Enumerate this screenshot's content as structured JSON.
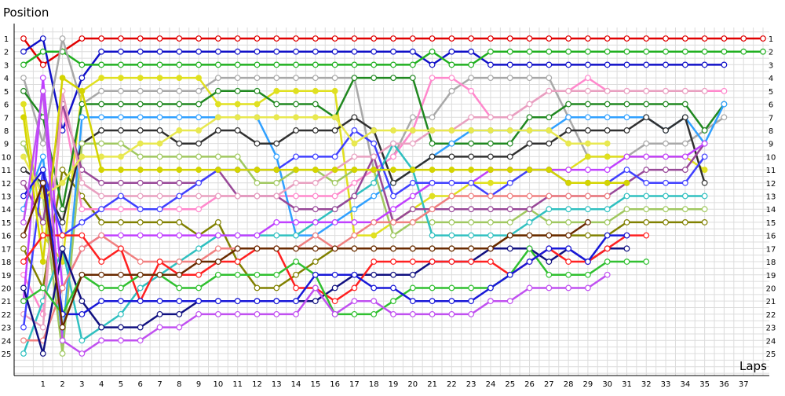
{
  "chart_data": {
    "type": "line",
    "title": "",
    "xlabel": "Laps",
    "ylabel": "Position",
    "xlim": [
      0,
      38
    ],
    "ylim": [
      1,
      25
    ],
    "y_reversed": true,
    "grid": true,
    "x_ticks": [
      1,
      2,
      3,
      4,
      5,
      6,
      7,
      8,
      9,
      10,
      11,
      12,
      13,
      14,
      15,
      16,
      17,
      18,
      19,
      20,
      21,
      22,
      23,
      24,
      25,
      26,
      27,
      28,
      29,
      30,
      31,
      32,
      33,
      34,
      35,
      36,
      37
    ],
    "y_ticks": [
      1,
      2,
      3,
      4,
      5,
      6,
      7,
      8,
      9,
      10,
      11,
      12,
      13,
      14,
      15,
      16,
      17,
      18,
      19,
      20,
      21,
      22,
      23,
      24,
      25
    ],
    "series": [
      {
        "color": "#e00000",
        "x0": 0,
        "values": [
          1,
          3,
          2,
          1,
          1,
          1,
          1,
          1,
          1,
          1,
          1,
          1,
          1,
          1,
          1,
          1,
          1,
          1,
          1,
          1,
          1,
          1,
          1,
          1,
          1,
          1,
          1,
          1,
          1,
          1,
          1,
          1,
          1,
          1,
          1,
          1,
          1,
          1,
          1
        ]
      },
      {
        "color": "#1010c8",
        "x0": 0,
        "values": [
          2,
          1,
          8,
          4,
          2,
          2,
          2,
          2,
          2,
          2,
          2,
          2,
          2,
          2,
          2,
          2,
          2,
          2,
          2,
          2,
          2,
          3,
          2,
          2,
          3,
          3,
          3,
          3,
          3,
          3,
          3,
          3,
          3,
          3,
          3,
          3,
          3
        ]
      },
      {
        "color": "#20b020",
        "x0": 0,
        "values": [
          3,
          2,
          2,
          3,
          3,
          3,
          3,
          3,
          3,
          3,
          3,
          3,
          3,
          3,
          3,
          3,
          3,
          3,
          3,
          3,
          3,
          2,
          3,
          3,
          2,
          2,
          2,
          2,
          2,
          2,
          2,
          2,
          2,
          2,
          2,
          2,
          2,
          2,
          2
        ]
      },
      {
        "color": "#a8a8a8",
        "x0": 0,
        "values": [
          4,
          9,
          1,
          6,
          5,
          5,
          5,
          5,
          5,
          5,
          4,
          4,
          4,
          4,
          4,
          4,
          4,
          4,
          11,
          10,
          7,
          7,
          5,
          4,
          4,
          4,
          4,
          4,
          7,
          10,
          10,
          10,
          9,
          9,
          9,
          8,
          7
        ]
      },
      {
        "color": "#e0e020",
        "x0": 0,
        "values": [
          6,
          16,
          18,
          5,
          4,
          4,
          4,
          4,
          4,
          4,
          6,
          6,
          6,
          5,
          5,
          5,
          5,
          16,
          16,
          15,
          14,
          13,
          13,
          12,
          12,
          12,
          11,
          11,
          11,
          10,
          10,
          10,
          10,
          10,
          10,
          11
        ]
      },
      {
        "color": "#808000",
        "x0": 0,
        "values": [
          17,
          20,
          11,
          13,
          15,
          15,
          15,
          15,
          15,
          16,
          15,
          18,
          20,
          20,
          19,
          18,
          17,
          17,
          17,
          17,
          17,
          17,
          17,
          17,
          17,
          16,
          16,
          16,
          16,
          16,
          16,
          15,
          15,
          15,
          15,
          15
        ]
      },
      {
        "color": "#ff88cc",
        "x0": 0,
        "values": [
          19,
          22,
          6,
          14,
          14,
          14,
          14,
          14,
          14,
          14,
          13,
          13,
          13,
          13,
          13,
          13,
          13,
          12,
          11,
          10,
          8,
          4,
          4,
          5,
          7,
          7,
          6,
          5,
          5,
          4,
          5,
          5,
          5,
          5,
          5,
          5,
          5
        ]
      },
      {
        "color": "#208820",
        "x0": 0,
        "values": [
          5,
          7,
          14,
          6,
          6,
          6,
          6,
          6,
          6,
          6,
          5,
          5,
          5,
          6,
          6,
          6,
          7,
          4,
          4,
          4,
          4,
          9,
          9,
          9,
          9,
          9,
          7,
          7,
          6,
          6,
          6,
          6,
          6,
          6,
          6,
          8,
          6
        ]
      },
      {
        "color": "#30a0ff",
        "x0": 0,
        "values": [
          14,
          10,
          24,
          7,
          7,
          7,
          7,
          7,
          7,
          7,
          7,
          7,
          7,
          10,
          16,
          16,
          15,
          14,
          13,
          12,
          11,
          10,
          9,
          8,
          8,
          8,
          8,
          8,
          7,
          7,
          7,
          7,
          7,
          8,
          7,
          9,
          6
        ]
      },
      {
        "color": "#303030",
        "x0": 0,
        "values": [
          11,
          12,
          15,
          9,
          8,
          8,
          8,
          8,
          9,
          9,
          8,
          8,
          9,
          9,
          8,
          8,
          8,
          7,
          8,
          12,
          11,
          10,
          10,
          10,
          10,
          10,
          9,
          9,
          8,
          8,
          8,
          8,
          7,
          8,
          7,
          12
        ]
      },
      {
        "color": "#a0c860",
        "x0": 0,
        "values": [
          9,
          13,
          25,
          9,
          9,
          9,
          10,
          10,
          10,
          10,
          10,
          10,
          12,
          12,
          11,
          11,
          12,
          11,
          11,
          16,
          15,
          15,
          15,
          15,
          15,
          15,
          14,
          15,
          15,
          15,
          15,
          14,
          14,
          14,
          14,
          14
        ]
      },
      {
        "color": "#30c0c0",
        "x0": 0,
        "values": [
          25,
          21,
          17,
          24,
          23,
          22,
          20,
          19,
          18,
          17,
          16,
          16,
          16,
          16,
          16,
          15,
          14,
          13,
          12,
          9,
          11,
          16,
          16,
          16,
          16,
          16,
          15,
          14,
          14,
          14,
          14,
          13,
          13,
          13,
          13,
          13
        ]
      },
      {
        "color": "#984898",
        "x0": 0,
        "values": [
          12,
          15,
          6,
          11,
          12,
          12,
          12,
          12,
          12,
          12,
          11,
          13,
          13,
          13,
          14,
          14,
          14,
          13,
          10,
          15,
          14,
          14,
          14,
          14,
          14,
          14,
          14,
          13,
          13,
          13,
          13,
          12,
          11,
          11,
          11,
          9
        ]
      },
      {
        "color": "#e8a0c0",
        "x0": 0,
        "values": [
          22,
          23,
          5,
          12,
          13,
          13,
          13,
          13,
          13,
          13,
          13,
          13,
          13,
          13,
          12,
          12,
          11,
          10,
          10,
          9,
          9,
          8,
          8,
          7,
          7,
          7,
          6,
          5,
          5,
          5,
          5,
          5,
          5,
          5,
          5,
          5
        ]
      },
      {
        "color": "#c040ff",
        "x0": 0,
        "values": [
          21,
          4,
          20,
          17,
          16,
          16,
          16,
          16,
          16,
          16,
          16,
          16,
          16,
          15,
          15,
          15,
          15,
          15,
          15,
          14,
          13,
          12,
          12,
          12,
          11,
          11,
          11,
          11,
          11,
          11,
          11,
          10,
          10,
          10,
          10,
          9
        ]
      },
      {
        "color": "#4040ff",
        "x0": 0,
        "values": [
          23,
          11,
          16,
          15,
          14,
          13,
          14,
          14,
          13,
          12,
          11,
          11,
          11,
          11,
          10,
          10,
          10,
          8,
          9,
          13,
          12,
          12,
          12,
          12,
          13,
          12,
          11,
          11,
          12,
          12,
          12,
          11,
          12,
          12,
          12,
          10
        ]
      },
      {
        "color": "#e8e850",
        "x0": 0,
        "values": [
          10,
          13,
          12,
          10,
          10,
          10,
          9,
          9,
          8,
          8,
          7,
          7,
          7,
          7,
          7,
          7,
          7,
          9,
          8,
          8,
          8,
          8,
          8,
          8,
          8,
          8,
          8,
          8,
          9,
          9,
          9
        ]
      },
      {
        "color": "#f08080",
        "x0": 0,
        "values": [
          24,
          24,
          20,
          17,
          16,
          17,
          18,
          18,
          18,
          18,
          17,
          17,
          17,
          17,
          17,
          16,
          17,
          16,
          15,
          15,
          15,
          14,
          13,
          13,
          13,
          13,
          13,
          13,
          13,
          13,
          13
        ]
      },
      {
        "color": "#101080",
        "x0": 0,
        "values": [
          20,
          25,
          17,
          21,
          23,
          23,
          23,
          22,
          22,
          21,
          21,
          21,
          21,
          21,
          21,
          21,
          20,
          19,
          19,
          19,
          19,
          18,
          18,
          18,
          17,
          17,
          17,
          18,
          17,
          18,
          17,
          17
        ]
      },
      {
        "color": "#d4d400",
        "x0": 0,
        "values": [
          7,
          18,
          4,
          5,
          11,
          11,
          11,
          11,
          11,
          11,
          11,
          11,
          11,
          11,
          11,
          11,
          11,
          11,
          11,
          11,
          11,
          11,
          11,
          11,
          11,
          11,
          11,
          11,
          12,
          12,
          12,
          12
        ]
      },
      {
        "color": "#ff2020",
        "x0": 0,
        "values": [
          18,
          16,
          16,
          16,
          18,
          17,
          21,
          18,
          19,
          19,
          18,
          18,
          17,
          17,
          20,
          20,
          21,
          20,
          18,
          18,
          18,
          18,
          18,
          18,
          18,
          19,
          18,
          17,
          18,
          18,
          17,
          16,
          16
        ]
      },
      {
        "color": "#30c030",
        "x0": 0,
        "values": [
          21,
          20,
          22,
          19,
          20,
          20,
          19,
          19,
          20,
          20,
          19,
          19,
          19,
          19,
          18,
          19,
          22,
          22,
          22,
          21,
          20,
          20,
          20,
          20,
          20,
          19,
          17,
          19,
          19,
          19,
          18,
          18,
          18
        ]
      },
      {
        "color": "#1818d8",
        "x0": 0,
        "values": [
          13,
          11,
          22,
          22,
          21,
          21,
          21,
          21,
          21,
          21,
          21,
          21,
          21,
          21,
          21,
          19,
          19,
          19,
          20,
          20,
          21,
          21,
          21,
          21,
          20,
          19,
          18,
          17,
          17,
          18,
          16,
          16
        ]
      },
      {
        "color": "#c050f0",
        "x0": 0,
        "values": [
          15,
          5,
          24,
          25,
          24,
          24,
          24,
          23,
          23,
          22,
          22,
          22,
          22,
          22,
          22,
          20,
          22,
          21,
          21,
          22,
          22,
          22,
          22,
          22,
          21,
          21,
          20,
          20,
          20,
          20,
          19
        ]
      },
      {
        "color": "#6a2a00",
        "x0": 0,
        "values": [
          16,
          12,
          23,
          19,
          19,
          19,
          19,
          19,
          19,
          18,
          18,
          17,
          17,
          17,
          17,
          17,
          17,
          17,
          17,
          17,
          17,
          17,
          17,
          17,
          17,
          16,
          16,
          16,
          16,
          15
        ]
      }
    ]
  }
}
